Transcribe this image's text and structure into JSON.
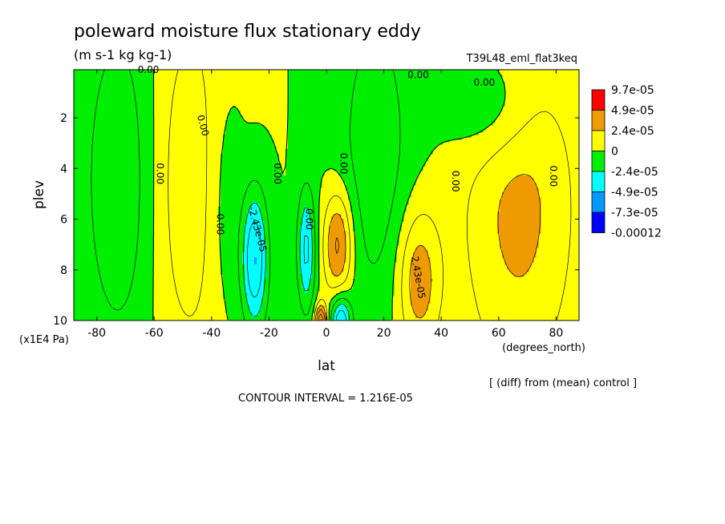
{
  "chart_data": {
    "type": "heatmap",
    "title": "poleward moisture flux stationary eddy",
    "units": "(m s-1 kg kg-1)",
    "run_label": "T39L48_eml_flat3keq",
    "xlabel": "lat",
    "x_units": "(degrees_north)",
    "ylabel": "plev",
    "y_units": "(x1E4 Pa)",
    "xlim": [
      -88,
      88
    ],
    "ylim": [
      10,
      0.1
    ],
    "x_ticks": [
      {
        "value": -80,
        "label": "-80"
      },
      {
        "value": -60,
        "label": "-60"
      },
      {
        "value": -40,
        "label": "-40"
      },
      {
        "value": -20,
        "label": "-20"
      },
      {
        "value": 0,
        "label": "0"
      },
      {
        "value": 20,
        "label": "20"
      },
      {
        "value": 40,
        "label": "40"
      },
      {
        "value": 60,
        "label": "60"
      },
      {
        "value": 80,
        "label": "80"
      }
    ],
    "y_ticks": [
      {
        "value": 2,
        "label": "2"
      },
      {
        "value": 4,
        "label": "4"
      },
      {
        "value": 6,
        "label": "6"
      },
      {
        "value": 8,
        "label": "8"
      },
      {
        "value": 10,
        "label": "10"
      }
    ],
    "legend": [
      {
        "label": "9.7e-05",
        "color": "#ff0000"
      },
      {
        "label": "4.9e-05",
        "color": "#ee9a00"
      },
      {
        "label": "2.4e-05",
        "color": "#ffff00"
      },
      {
        "label": "0",
        "color": "#00ee00"
      },
      {
        "label": "-2.4e-05",
        "color": "#00ffff"
      },
      {
        "label": "-4.9e-05",
        "color": "#0099ff"
      },
      {
        "label": "-7.3e-05",
        "color": "#0000ff"
      },
      {
        "label": "-0.00012",
        "color": ""
      }
    ],
    "legend_placement": "right",
    "annotation": "[ (diff) from (mean) control ]",
    "contour_interval_text": "CONTOUR INTERVAL = 1.216E-05",
    "contour_labels": [
      {
        "text": "0.00",
        "lat": -62,
        "p": 0.1,
        "angle": 0
      },
      {
        "text": "0.00",
        "lat": 32,
        "p": 0.3,
        "angle": 0
      },
      {
        "text": "0.00",
        "lat": 55,
        "p": 0.6,
        "angle": 0
      },
      {
        "text": "0.00",
        "lat": -43,
        "p": 2.3,
        "angle": 75
      },
      {
        "text": "0.00",
        "lat": -58,
        "p": 4.2,
        "angle": 90
      },
      {
        "text": "0.00",
        "lat": -37,
        "p": 6.2,
        "angle": 90
      },
      {
        "text": "0.00",
        "lat": -17,
        "p": 4.2,
        "angle": 90
      },
      {
        "text": "0.00",
        "lat": -6,
        "p": 6.0,
        "angle": 90
      },
      {
        "text": "0.00",
        "lat": 6,
        "p": 3.8,
        "angle": 90
      },
      {
        "text": "0.00",
        "lat": 45,
        "p": 4.5,
        "angle": 90
      },
      {
        "text": "0.00",
        "lat": 79,
        "p": 4.3,
        "angle": 90
      },
      {
        "text": "-2.43e-05",
        "lat": -24,
        "p": 6.4,
        "angle": 75
      },
      {
        "text": "2.43e-05",
        "lat": 32,
        "p": 8.3,
        "angle": 80
      }
    ],
    "fields": [
      {
        "sign": 1,
        "amp": 4.2,
        "lat": 4,
        "p": 7.0,
        "slat": 3.6,
        "sp": 1.5
      },
      {
        "sign": 1,
        "amp": 3.3,
        "lat": 32,
        "p": 8.4,
        "slat": 5.2,
        "sp": 2.0
      },
      {
        "sign": 1,
        "amp": 2.8,
        "lat": 67,
        "p": 5.5,
        "slat": 14,
        "sp": 5.0
      },
      {
        "sign": 1,
        "amp": 2.2,
        "lat": -47,
        "p": 4.6,
        "slat": 10,
        "sp": 5.0
      },
      {
        "sign": 1,
        "amp": 6.5,
        "lat": -2,
        "p": 10.1,
        "slat": 1.4,
        "sp": 0.5
      },
      {
        "sign": -1,
        "amp": 5.0,
        "lat": -25,
        "p": 7.6,
        "slat": 3.2,
        "sp": 1.9
      },
      {
        "sign": -1,
        "amp": 3.9,
        "lat": -7,
        "p": 7.2,
        "slat": 2.2,
        "sp": 1.7
      },
      {
        "sign": -1,
        "amp": 5.0,
        "lat": 5,
        "p": 10.0,
        "slat": 2.4,
        "sp": 0.7
      },
      {
        "sign": -1,
        "amp": 2.2,
        "lat": -72,
        "p": 4.5,
        "slat": 9,
        "sp": 4.8
      },
      {
        "sign": -1,
        "amp": 2.0,
        "lat": 17,
        "p": 3.4,
        "slat": 9,
        "sp": 4.5
      },
      {
        "sign": -1,
        "amp": 2.0,
        "lat": 58,
        "p": 1.5,
        "slat": 11,
        "sp": 1.6
      },
      {
        "sign": -1,
        "amp": 1.4,
        "lat": -36,
        "p": 5.2,
        "slat": 5,
        "sp": 3.5
      }
    ]
  }
}
